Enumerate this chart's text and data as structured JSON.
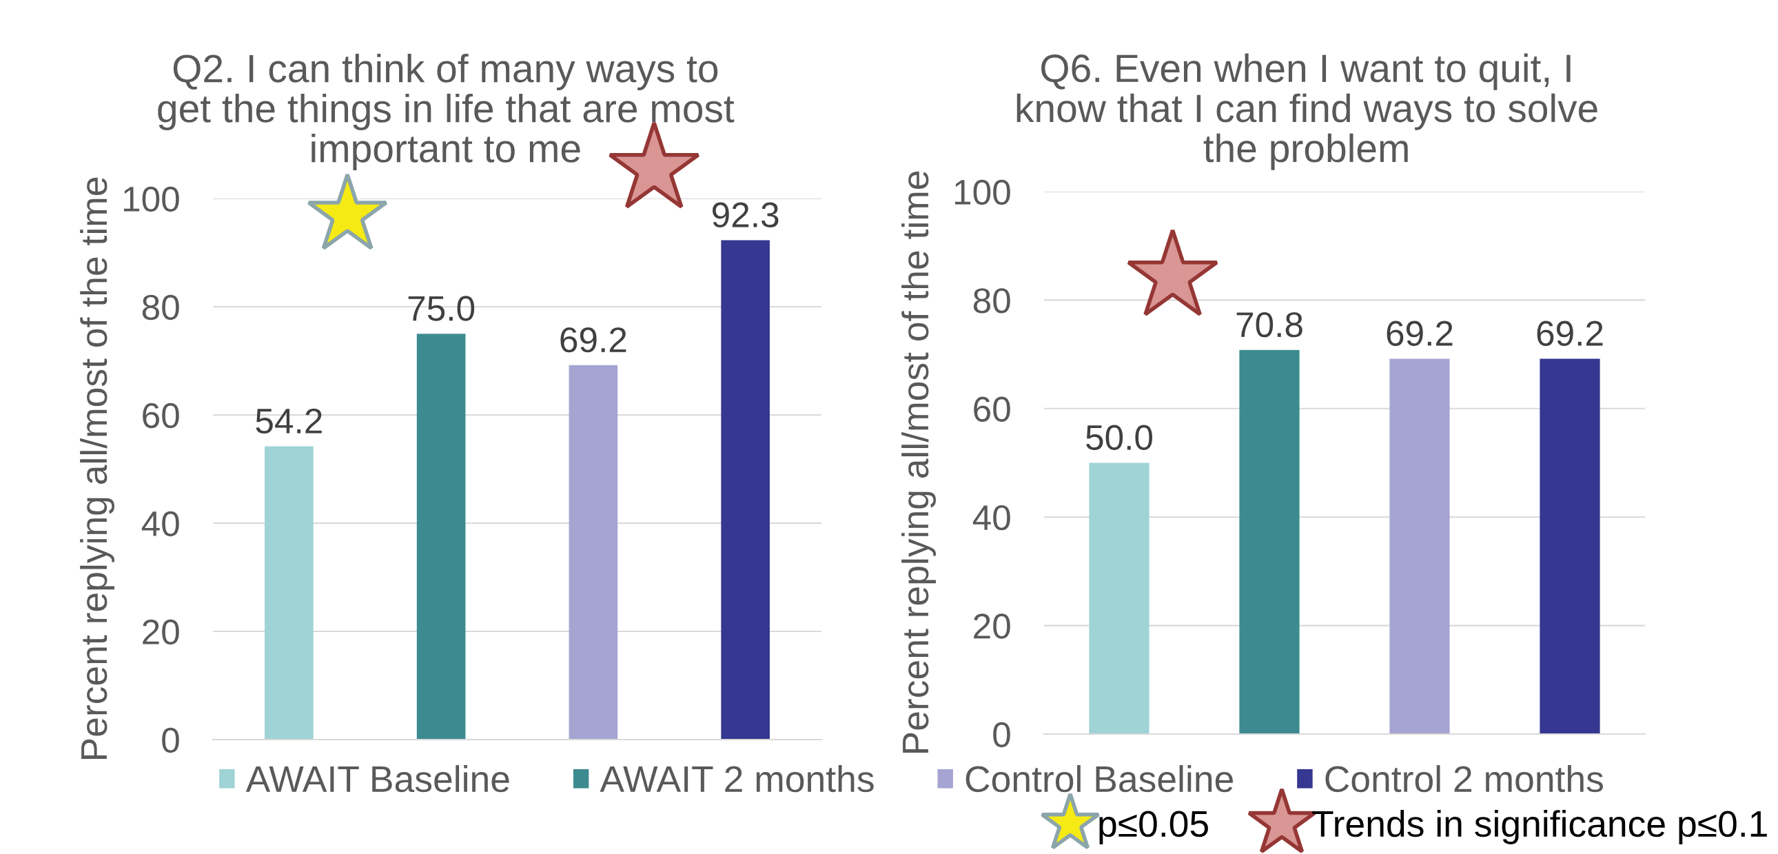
{
  "chart_data": [
    {
      "type": "bar",
      "title": "Q2. I can think of many ways to\nget the things in life that are most\nimportant to me",
      "ylabel": "Percent replying all/most of the time",
      "categories": [
        null,
        null,
        null,
        null
      ],
      "series": [
        {
          "name": "AWAIT Baseline",
          "color": "#9fd3d6",
          "values": [
            54.2,
            null,
            null,
            null
          ],
          "value_labels": [
            "54.2",
            null,
            null,
            null
          ]
        },
        {
          "name": "AWAIT 2 months",
          "color": "#3d8b91",
          "values": [
            null,
            75.0,
            null,
            null
          ],
          "value_labels": [
            null,
            "75.0",
            null,
            null
          ]
        },
        {
          "name": "Control Baseline",
          "color": "#a6a4d2",
          "values": [
            null,
            null,
            69.2,
            null
          ],
          "value_labels": [
            null,
            null,
            "69.2",
            null
          ]
        },
        {
          "name": "Control 2 months",
          "color": "#353791",
          "values": [
            null,
            null,
            null,
            92.3
          ],
          "value_labels": [
            null,
            null,
            null,
            "92.3"
          ]
        }
      ],
      "ylim": [
        0,
        100
      ],
      "yticks": [
        0,
        20,
        40,
        60,
        80,
        100
      ],
      "grid": "y",
      "legend": "bottom"
    },
    {
      "type": "bar",
      "title": "Q6. Even when I want to quit, I\nknow that I can find ways to solve\nthe problem",
      "ylabel": "Percent replying all/most of the time",
      "categories": [
        null,
        null,
        null,
        null
      ],
      "series": [
        {
          "name": "AWAIT Baseline",
          "color": "#9fd3d6",
          "values": [
            50.0,
            null,
            null,
            null
          ],
          "value_labels": [
            "50.0",
            null,
            null,
            null
          ]
        },
        {
          "name": "AWAIT 2 months",
          "color": "#3d8b91",
          "values": [
            null,
            70.8,
            null,
            null
          ],
          "value_labels": [
            null,
            "70.8",
            null,
            null
          ]
        },
        {
          "name": "Control Baseline",
          "color": "#a6a4d2",
          "values": [
            null,
            null,
            69.2,
            null
          ],
          "value_labels": [
            null,
            null,
            "69.2",
            null
          ]
        },
        {
          "name": "Control 2 months",
          "color": "#353791",
          "values": [
            null,
            null,
            null,
            69.2
          ],
          "value_labels": [
            null,
            null,
            null,
            "69.2"
          ]
        }
      ],
      "ylim": [
        0,
        100
      ],
      "yticks": [
        0,
        20,
        40,
        60,
        80,
        100
      ],
      "grid": "y",
      "legend": "bottom",
      "annotations": [
        "p≤0.05",
        "Trends in significance p≤0.1"
      ]
    }
  ]
}
